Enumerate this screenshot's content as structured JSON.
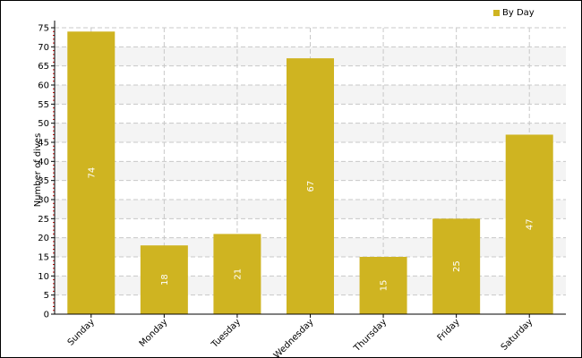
{
  "colors": {
    "bar": "#cfb421",
    "grid": "#c8c8c8",
    "plot_stripe": "#f4f4f4",
    "minor_tick": "#cc0000"
  },
  "chart_data": {
    "type": "bar",
    "categories": [
      "Sunday",
      "Monday",
      "Tuesday",
      "Wednesday",
      "Thursday",
      "Friday",
      "Saturday"
    ],
    "series": [
      {
        "name": "By Day",
        "values": [
          74,
          18,
          21,
          67,
          15,
          25,
          47
        ]
      }
    ],
    "title": "",
    "xlabel": "",
    "ylabel": "Number of dives",
    "ylim": [
      0,
      75
    ],
    "yticks": [
      0,
      5,
      10,
      15,
      20,
      25,
      30,
      35,
      40,
      45,
      50,
      55,
      60,
      65,
      70,
      75
    ],
    "grid": true,
    "legend": "top-right",
    "data_labels": true
  }
}
